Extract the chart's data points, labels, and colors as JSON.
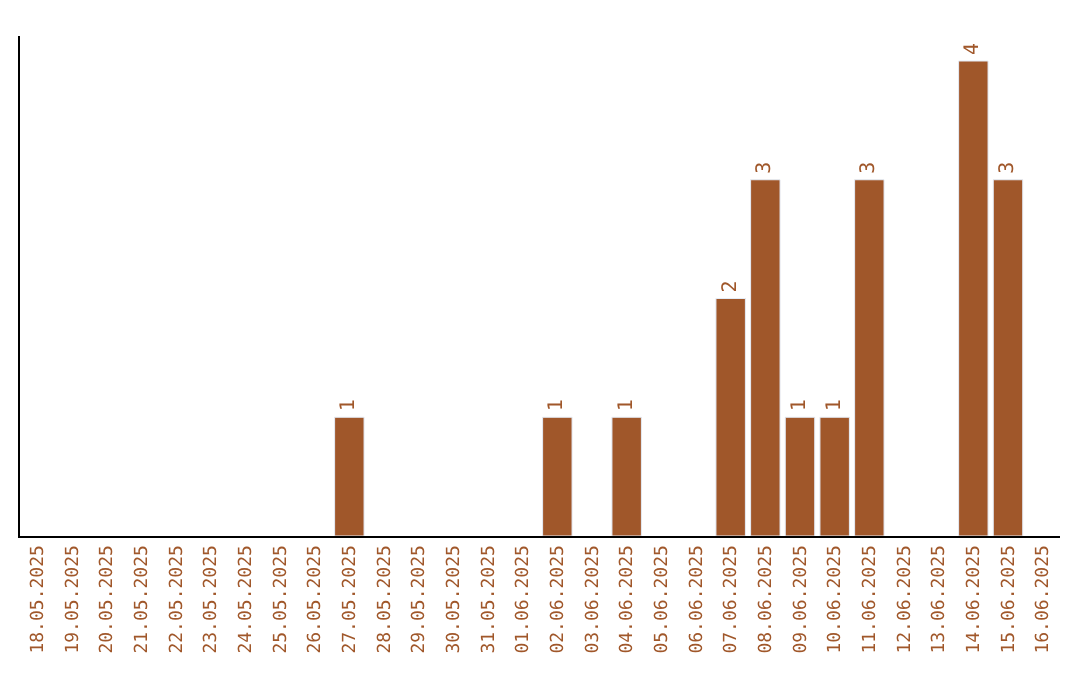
{
  "chart_data": {
    "type": "bar",
    "categories": [
      "18.05.2025",
      "19.05.2025",
      "20.05.2025",
      "21.05.2025",
      "22.05.2025",
      "23.05.2025",
      "24.05.2025",
      "25.05.2025",
      "26.05.2025",
      "27.05.2025",
      "28.05.2025",
      "29.05.2025",
      "30.05.2025",
      "31.05.2025",
      "01.06.2025",
      "02.06.2025",
      "03.06.2025",
      "04.06.2025",
      "05.06.2025",
      "06.06.2025",
      "07.06.2025",
      "08.06.2025",
      "09.06.2025",
      "10.06.2025",
      "11.06.2025",
      "12.06.2025",
      "13.06.2025",
      "14.06.2025",
      "15.06.2025",
      "16.06.2025"
    ],
    "values": [
      null,
      null,
      null,
      null,
      null,
      null,
      null,
      null,
      null,
      1,
      null,
      null,
      null,
      null,
      null,
      1,
      null,
      1,
      null,
      null,
      2,
      3,
      1,
      1,
      3,
      null,
      null,
      4,
      3,
      null
    ],
    "color": "#a0572a",
    "data_labels": true,
    "tick_labels": "x",
    "legend": false
  }
}
